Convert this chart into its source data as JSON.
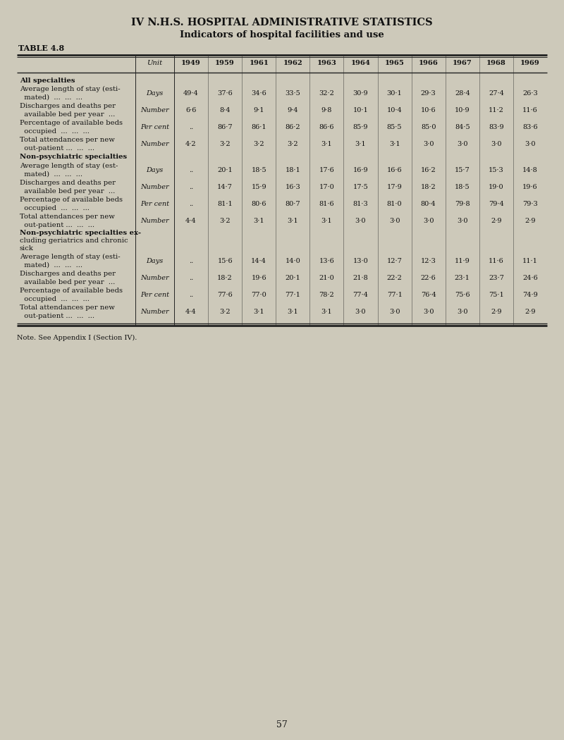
{
  "page_title": "IV N.H.S. HOSPITAL ADMINISTRATIVE STATISTICS",
  "subtitle": "Indicators of hospital facilities and use",
  "table_label": "TABLE 4.8",
  "note": "Note. See Appendix I (Section IV).",
  "page_number": "57",
  "columns": [
    "Unit",
    "1949",
    "1959",
    "1961",
    "1962",
    "1963",
    "1964",
    "1965",
    "1966",
    "1967",
    "1968",
    "1969"
  ],
  "sections": [
    {
      "header": "All specialties",
      "rows": [
        {
          "label_lines": [
            "Average length of stay (esti-",
            "  mated)  ...  ...  ..."
          ],
          "unit": "Days",
          "values": [
            "49·4",
            "37·6",
            "34·6",
            "33·5",
            "32·2",
            "30·9",
            "30·1",
            "29·3",
            "28·4",
            "27·4",
            "26·3"
          ]
        },
        {
          "label_lines": [
            "Discharges and deaths per",
            "  available bed per year  ..."
          ],
          "unit": "Number",
          "values": [
            "6·6",
            "8·4",
            "9·1",
            "9·4",
            "9·8",
            "10·1",
            "10·4",
            "10·6",
            "10·9",
            "11·2",
            "11·6"
          ]
        },
        {
          "label_lines": [
            "Percentage of available beds",
            "  occupied  ...  ...  ..."
          ],
          "unit": "Per cent",
          "values": [
            "..",
            "86·7",
            "86·1",
            "86·2",
            "86·6",
            "85·9",
            "85·5",
            "85·0",
            "84·5",
            "83·9",
            "83·6"
          ]
        },
        {
          "label_lines": [
            "Total attendances per new",
            "  out-patient ...  ...  ..."
          ],
          "unit": "Number",
          "values": [
            "4·2",
            "3·2",
            "3·2",
            "3·2",
            "3·1",
            "3·1",
            "3·1",
            "3·0",
            "3·0",
            "3·0",
            "3·0"
          ]
        }
      ]
    },
    {
      "header": "Non-psychiatric specialties",
      "rows": [
        {
          "label_lines": [
            "Average length of stay (est-",
            "  mated)  ...  ...  ..."
          ],
          "unit": "Days",
          "values": [
            "..",
            "20·1",
            "18·5",
            "18·1",
            "17·6",
            "16·9",
            "16·6",
            "16·2",
            "15·7",
            "15·3",
            "14·8"
          ]
        },
        {
          "label_lines": [
            "Discharges and deaths per",
            "  available bed per year  ..."
          ],
          "unit": "Number",
          "values": [
            "..",
            "14·7",
            "15·9",
            "16·3",
            "17·0",
            "17·5",
            "17·9",
            "18·2",
            "18·5",
            "19·0",
            "19·6"
          ]
        },
        {
          "label_lines": [
            "Percentage of available beds",
            "  occupied  ...  ...  ..."
          ],
          "unit": "Per cent",
          "values": [
            "..",
            "81·1",
            "80·6",
            "80·7",
            "81·6",
            "81·3",
            "81·0",
            "80·4",
            "79·8",
            "79·4",
            "79·3"
          ]
        },
        {
          "label_lines": [
            "Total attendances per new",
            "  out-patient ...  ...  ..."
          ],
          "unit": "Number",
          "values": [
            "4·4",
            "3·2",
            "3·1",
            "3·1",
            "3·1",
            "3·0",
            "3·0",
            "3·0",
            "3·0",
            "2·9",
            "2·9"
          ]
        }
      ]
    },
    {
      "header": "Non-psychiatric specialties ex-\ncluding geriatrics and chronic\nsick",
      "rows": [
        {
          "label_lines": [
            "Average length of stay (esti-",
            "  mated)  ...  ...  ..."
          ],
          "unit": "Days",
          "values": [
            "..",
            "15·6",
            "14·4",
            "14·0",
            "13·6",
            "13·0",
            "12·7",
            "12·3",
            "11·9",
            "11·6",
            "11·1"
          ]
        },
        {
          "label_lines": [
            "Discharges and deaths per",
            "  available bed per year  ..."
          ],
          "unit": "Number",
          "values": [
            "..",
            "18·2",
            "19·6",
            "20·1",
            "21·0",
            "21·8",
            "22·2",
            "22·6",
            "23·1",
            "23·7",
            "24·6"
          ]
        },
        {
          "label_lines": [
            "Percentage of available beds",
            "  occupied  ...  ...  ..."
          ],
          "unit": "Per cent",
          "values": [
            "..",
            "77·6",
            "77·0",
            "77·1",
            "78·2",
            "77·4",
            "77·1",
            "76·4",
            "75·6",
            "75·1",
            "74·9"
          ]
        },
        {
          "label_lines": [
            "Total attendances per new",
            "  out-patient ...  ...  ..."
          ],
          "unit": "Number",
          "values": [
            "4·4",
            "3·2",
            "3·1",
            "3·1",
            "3·1",
            "3·0",
            "3·0",
            "3·0",
            "3·0",
            "2·9",
            "2·9"
          ]
        }
      ]
    }
  ],
  "bg_color": "#cdc9ba",
  "text_color": "#111111",
  "line_color": "#222222",
  "title_fontsize": 10.5,
  "subtitle_fontsize": 9.5,
  "table_label_fontsize": 8,
  "cell_fontsize": 7.2,
  "note_fontsize": 7.0,
  "page_num_fontsize": 9
}
